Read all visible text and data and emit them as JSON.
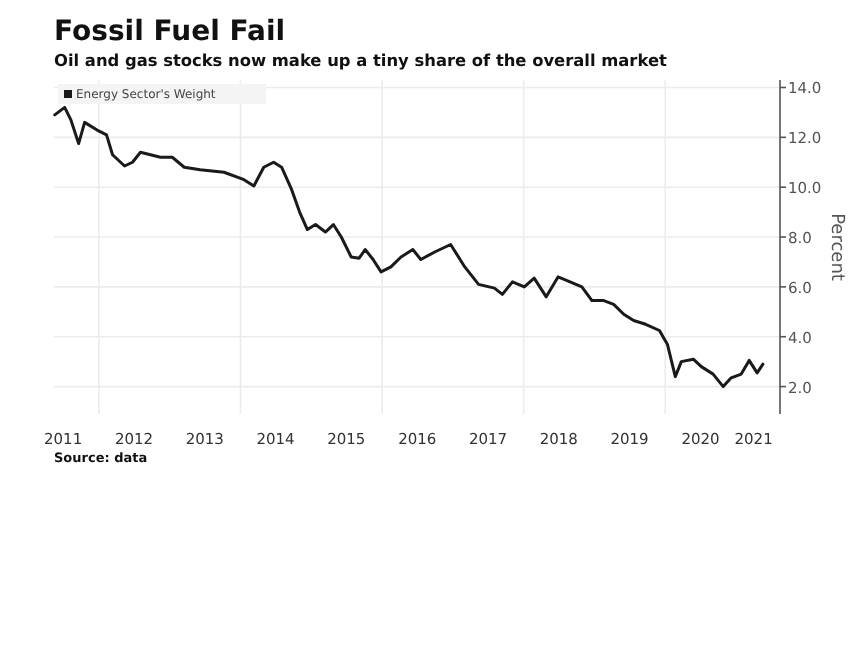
{
  "chart_data": {
    "type": "line",
    "title": "Fossil Fuel Fail",
    "subtitle": "Oil and gas stocks now make up a tiny share of the overall market",
    "ylabel": "Percent",
    "annotations": [
      "Source: data"
    ],
    "x": [
      "2011-05-19",
      "2011-07-09",
      "2011-08-10",
      "2011-09-19",
      "2011-10-20",
      "2011-12-21",
      "2012-02-10",
      "2012-03-12",
      "2012-05-13",
      "2012-06-23",
      "2012-08-03",
      "2012-11-14",
      "2013-01-14",
      "2013-03-17",
      "2013-06-07",
      "2013-10-08",
      "2014-01-19",
      "2014-03-11",
      "2014-05-01",
      "2014-06-21",
      "2014-08-01",
      "2014-09-22",
      "2014-11-02",
      "2014-12-12",
      "2015-01-23",
      "2015-03-15",
      "2015-04-25",
      "2015-06-05",
      "2015-07-26",
      "2015-09-05",
      "2015-10-06",
      "2015-11-16",
      "2015-12-27",
      "2016-02-16",
      "2016-04-08",
      "2016-06-08",
      "2016-07-19",
      "2016-09-29",
      "2016-12-20",
      "2017-03-03",
      "2017-05-13",
      "2017-08-03",
      "2017-09-13",
      "2017-11-04",
      "2018-01-04",
      "2018-02-24",
      "2018-04-27",
      "2018-06-27",
      "2018-08-28",
      "2018-10-28",
      "2018-12-19",
      "2019-02-18",
      "2019-04-10",
      "2019-06-01",
      "2019-07-22",
      "2019-09-22",
      "2019-12-02",
      "2020-01-12",
      "2020-02-22",
      "2020-03-24",
      "2020-05-25",
      "2020-07-05",
      "2020-09-04",
      "2020-10-26",
      "2020-12-06",
      "2021-01-27",
      "2021-03-09",
      "2021-04-19",
      "2021-05-19"
    ],
    "series": [
      {
        "name": "Energy Sector's Weight",
        "color": "#1a1a1a",
        "values": [
          12.9,
          13.2,
          12.7,
          11.75,
          12.6,
          12.3,
          12.1,
          11.3,
          10.85,
          11.0,
          11.4,
          11.2,
          11.2,
          10.8,
          10.7,
          10.6,
          10.3,
          10.05,
          10.8,
          11.0,
          10.8,
          9.9,
          9.0,
          8.3,
          8.5,
          8.2,
          8.5,
          8.0,
          7.2,
          7.15,
          7.5,
          7.1,
          6.6,
          6.8,
          7.2,
          7.5,
          7.1,
          7.4,
          7.7,
          6.8,
          6.1,
          5.95,
          5.7,
          6.2,
          6.0,
          6.35,
          5.6,
          6.4,
          6.2,
          6.0,
          5.45,
          5.45,
          5.3,
          4.9,
          4.65,
          4.5,
          4.25,
          3.7,
          2.4,
          3.0,
          3.1,
          2.8,
          2.5,
          2.0,
          2.35,
          2.5,
          3.05,
          2.55,
          2.9
        ]
      }
    ],
    "xlim": [
      "2011-05-15",
      "2021-08-15"
    ],
    "xticks": [
      {
        "value": "2011-07-01",
        "label": "2011"
      },
      {
        "value": "2012-01-01",
        "label": null
      },
      {
        "value": "2012-07-01",
        "label": "2012"
      },
      {
        "value": "2013-07-01",
        "label": "2013"
      },
      {
        "value": "2014-01-01",
        "label": null
      },
      {
        "value": "2014-07-01",
        "label": "2014"
      },
      {
        "value": "2015-07-01",
        "label": "2015"
      },
      {
        "value": "2016-01-01",
        "label": null
      },
      {
        "value": "2016-07-01",
        "label": "2016"
      },
      {
        "value": "2017-07-01",
        "label": "2017"
      },
      {
        "value": "2018-01-01",
        "label": null
      },
      {
        "value": "2018-07-01",
        "label": "2018"
      },
      {
        "value": "2019-07-01",
        "label": "2019"
      },
      {
        "value": "2020-01-01",
        "label": null
      },
      {
        "value": "2020-07-01",
        "label": "2020"
      },
      {
        "value": "2021-04-01",
        "label": "2021"
      }
    ],
    "ylim": [
      0.9,
      14.3
    ],
    "yticks": [
      {
        "value": 2,
        "label": "2.0"
      },
      {
        "value": 4,
        "label": "4.0"
      },
      {
        "value": 6,
        "label": "6.0"
      },
      {
        "value": 8,
        "label": "8.0"
      },
      {
        "value": 10,
        "label": "10.0"
      },
      {
        "value": 12,
        "label": "12.0"
      },
      {
        "value": 14,
        "label": "14.0"
      }
    ],
    "grid": true,
    "legend": "top left",
    "marker": "none",
    "line_style": "solid"
  }
}
